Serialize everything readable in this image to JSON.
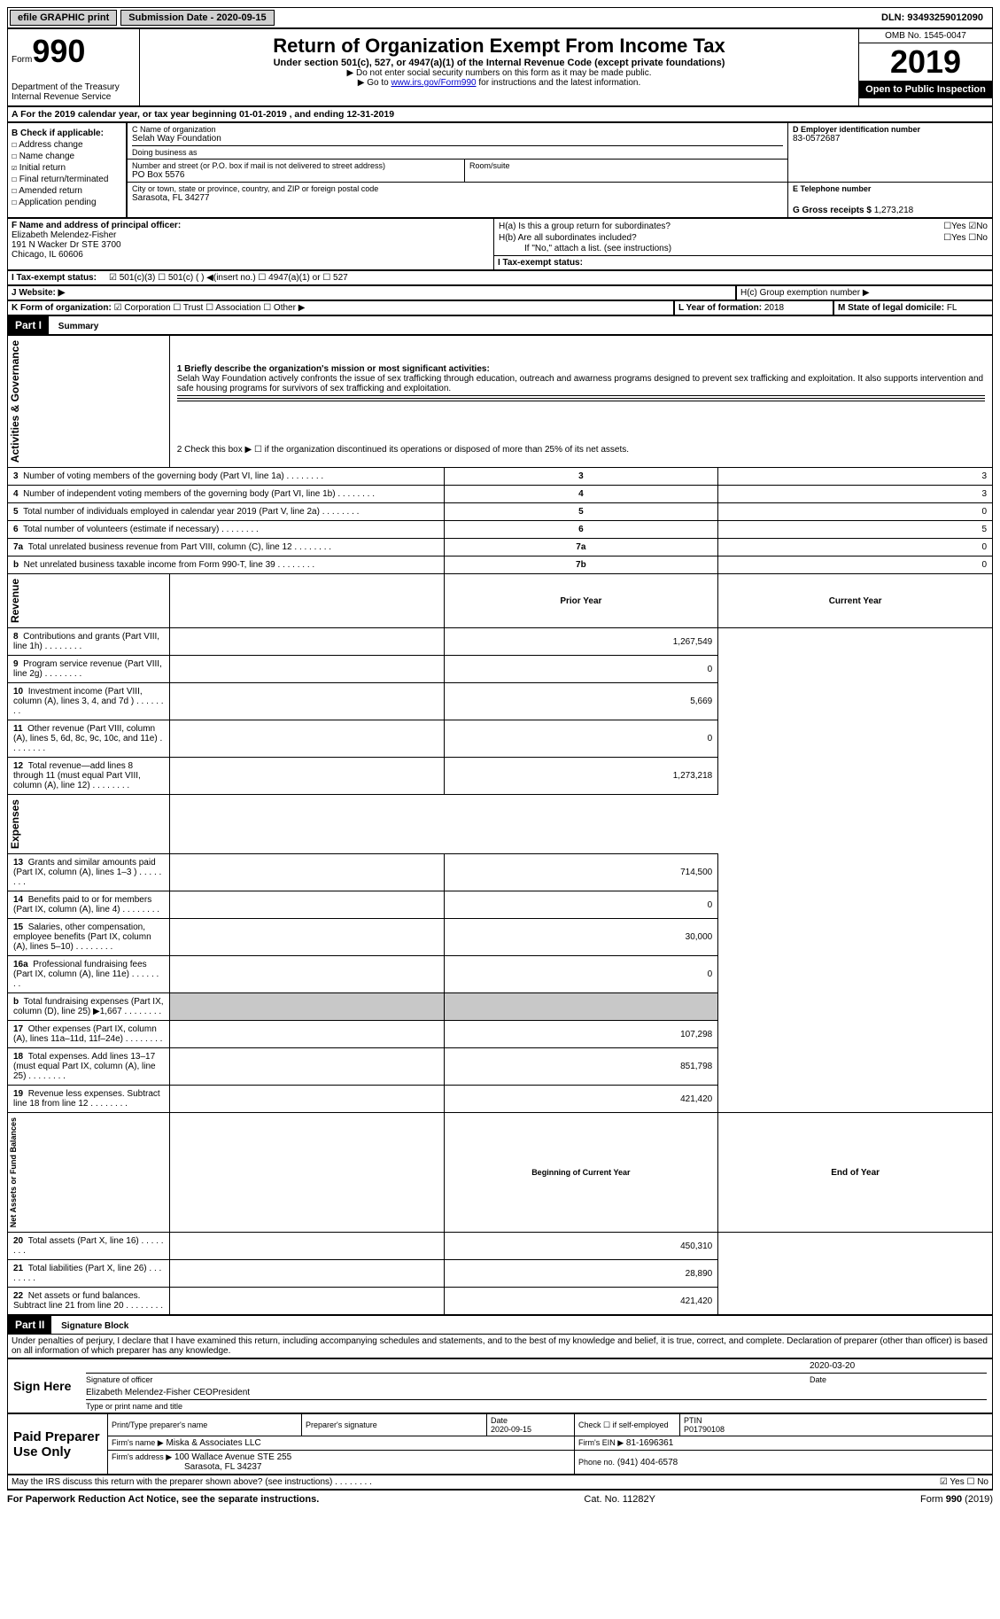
{
  "topbar": {
    "efile": "efile GRAPHIC print",
    "submission": "Submission Date - 2020-09-15",
    "dln": "DLN: 93493259012090"
  },
  "header": {
    "form_label": "Form",
    "form_number": "990",
    "dept": "Department of the Treasury\nInternal Revenue Service",
    "title": "Return of Organization Exempt From Income Tax",
    "subtitle": "Under section 501(c), 527, or 4947(a)(1) of the Internal Revenue Code (except private foundations)",
    "note1": "▶ Do not enter social security numbers on this form as it may be made public.",
    "note2_pre": "▶ Go to ",
    "note2_link": "www.irs.gov/Form990",
    "note2_post": " for instructions and the latest information.",
    "omb": "OMB No. 1545-0047",
    "year": "2019",
    "inspection": "Open to Public Inspection"
  },
  "period": "A For the 2019 calendar year, or tax year beginning 01-01-2019    , and ending 12-31-2019",
  "section_b": {
    "title": "B Check if applicable:",
    "items": [
      {
        "chk": "☐",
        "label": "Address change"
      },
      {
        "chk": "☐",
        "label": "Name change"
      },
      {
        "chk": "☑",
        "label": "Initial return"
      },
      {
        "chk": "☐",
        "label": "Final return/terminated"
      },
      {
        "chk": "☐",
        "label": "Amended return"
      },
      {
        "chk": "☐",
        "label": "Application pending"
      }
    ]
  },
  "section_c": {
    "name_label": "C Name of organization",
    "name": "Selah Way Foundation",
    "dba_label": "Doing business as",
    "addr_label": "Number and street (or P.O. box if mail is not delivered to street address)",
    "room_label": "Room/suite",
    "addr": "PO Box 5576",
    "city_label": "City or town, state or province, country, and ZIP or foreign postal code",
    "city": "Sarasota, FL  34277"
  },
  "section_d": {
    "label": "D Employer identification number",
    "value": "83-0572687"
  },
  "section_e": {
    "label": "E Telephone number"
  },
  "section_g": {
    "label": "G Gross receipts $",
    "value": "1,273,218"
  },
  "section_f": {
    "label": "F  Name and address of principal officer:",
    "name": "Elizabeth Melendez-Fisher",
    "addr1": "191 N Wacker Dr STE 3700",
    "addr2": "Chicago, IL  60606"
  },
  "section_h": {
    "ha": "H(a)  Is this a group return for subordinates?",
    "ha_ans": "☐Yes ☑No",
    "hb": "H(b)  Are all subordinates included?",
    "hb_ans": "☐Yes ☐No",
    "hb_note": "If \"No,\" attach a list. (see instructions)",
    "hc": "H(c)  Group exemption number ▶"
  },
  "section_i": {
    "label": "I   Tax-exempt status:",
    "opts": "☑ 501(c)(3)    ☐ 501(c) (  ) ◀(insert no.)    ☐ 4947(a)(1) or   ☐ 527"
  },
  "section_j": {
    "label": "J   Website: ▶"
  },
  "section_k": {
    "label": "K Form of organization:",
    "opts": "☑ Corporation  ☐ Trust  ☐ Association  ☐ Other ▶"
  },
  "section_l": {
    "label": "L Year of formation:",
    "value": "2018"
  },
  "section_m": {
    "label": "M State of legal domicile:",
    "value": "FL"
  },
  "part1": {
    "hdr": "Part I",
    "title": "Summary",
    "mission_label": "1  Briefly describe the organization's mission or most significant activities:",
    "mission": "Selah Way Foundation actively confronts the issue of sex trafficking through education, outreach and awarness programs designed to prevent sex trafficking and exploitation. It also supports intervention and safe housing programs for survivors of sex trafficking and exploitation.",
    "line2": "2   Check this box ▶ ☐  if the organization discontinued its operations or disposed of more than 25% of its net assets.",
    "vert_labels": {
      "ag": "Activities & Governance",
      "rev": "Revenue",
      "exp": "Expenses",
      "net": "Net Assets or Fund Balances"
    },
    "lines_ag": [
      {
        "no": "3",
        "text": "Number of voting members of the governing body (Part VI, line 1a)",
        "box": "3",
        "val": "3"
      },
      {
        "no": "4",
        "text": "Number of independent voting members of the governing body (Part VI, line 1b)",
        "box": "4",
        "val": "3"
      },
      {
        "no": "5",
        "text": "Total number of individuals employed in calendar year 2019 (Part V, line 2a)",
        "box": "5",
        "val": "0"
      },
      {
        "no": "6",
        "text": "Total number of volunteers (estimate if necessary)",
        "box": "6",
        "val": "5"
      },
      {
        "no": "7a",
        "text": "Total unrelated business revenue from Part VIII, column (C), line 12",
        "box": "7a",
        "val": "0"
      },
      {
        "no": "b",
        "text": "Net unrelated business taxable income from Form 990-T, line 39",
        "box": "7b",
        "val": "0"
      }
    ],
    "col_hdrs": {
      "prior": "Prior Year",
      "current": "Current Year"
    },
    "lines_rev": [
      {
        "no": "8",
        "text": "Contributions and grants (Part VIII, line 1h)",
        "prior": "",
        "current": "1,267,549"
      },
      {
        "no": "9",
        "text": "Program service revenue (Part VIII, line 2g)",
        "prior": "",
        "current": "0"
      },
      {
        "no": "10",
        "text": "Investment income (Part VIII, column (A), lines 3, 4, and 7d )",
        "prior": "",
        "current": "5,669"
      },
      {
        "no": "11",
        "text": "Other revenue (Part VIII, column (A), lines 5, 6d, 8c, 9c, 10c, and 11e)",
        "prior": "",
        "current": "0"
      },
      {
        "no": "12",
        "text": "Total revenue—add lines 8 through 11 (must equal Part VIII, column (A), line 12)",
        "prior": "",
        "current": "1,273,218"
      }
    ],
    "lines_exp": [
      {
        "no": "13",
        "text": "Grants and similar amounts paid (Part IX, column (A), lines 1–3 )",
        "prior": "",
        "current": "714,500"
      },
      {
        "no": "14",
        "text": "Benefits paid to or for members (Part IX, column (A), line 4)",
        "prior": "",
        "current": "0"
      },
      {
        "no": "15",
        "text": "Salaries, other compensation, employee benefits (Part IX, column (A), lines 5–10)",
        "prior": "",
        "current": "30,000"
      },
      {
        "no": "16a",
        "text": "Professional fundraising fees (Part IX, column (A), line 11e)",
        "prior": "",
        "current": "0"
      },
      {
        "no": "b",
        "text": "Total fundraising expenses (Part IX, column (D), line 25) ▶1,667",
        "prior": "shaded",
        "current": "shaded"
      },
      {
        "no": "17",
        "text": "Other expenses (Part IX, column (A), lines 11a–11d, 11f–24e)",
        "prior": "",
        "current": "107,298"
      },
      {
        "no": "18",
        "text": "Total expenses. Add lines 13–17 (must equal Part IX, column (A), line 25)",
        "prior": "",
        "current": "851,798"
      },
      {
        "no": "19",
        "text": "Revenue less expenses. Subtract line 18 from line 12",
        "prior": "",
        "current": "421,420"
      }
    ],
    "net_hdrs": {
      "begin": "Beginning of Current Year",
      "end": "End of Year"
    },
    "lines_net": [
      {
        "no": "20",
        "text": "Total assets (Part X, line 16)",
        "prior": "",
        "current": "450,310"
      },
      {
        "no": "21",
        "text": "Total liabilities (Part X, line 26)",
        "prior": "",
        "current": "28,890"
      },
      {
        "no": "22",
        "text": "Net assets or fund balances. Subtract line 21 from line 20",
        "prior": "",
        "current": "421,420"
      }
    ]
  },
  "part2": {
    "hdr": "Part II",
    "title": "Signature Block",
    "perjury": "Under penalties of perjury, I declare that I have examined this return, including accompanying schedules and statements, and to the best of my knowledge and belief, it is true, correct, and complete. Declaration of preparer (other than officer) is based on all information of which preparer has any knowledge.",
    "sign_here": "Sign Here",
    "sig_date": "2020-03-20",
    "sig_label": "Signature of officer",
    "date_label": "Date",
    "officer": "Elizabeth Melendez-Fisher  CEOPresident",
    "officer_label": "Type or print name and title",
    "paid": "Paid Preparer Use Only",
    "prep_name_label": "Print/Type preparer's name",
    "prep_sig_label": "Preparer's signature",
    "prep_date_label": "Date",
    "prep_date": "2020-09-15",
    "check_self": "Check ☐ if self-employed",
    "ptin_label": "PTIN",
    "ptin": "P01790108",
    "firm_name_label": "Firm's name    ▶",
    "firm_name": "Miska & Associates LLC",
    "firm_ein_label": "Firm's EIN ▶",
    "firm_ein": "81-1696361",
    "firm_addr_label": "Firm's address ▶",
    "firm_addr1": "100 Wallace Avenue STE 255",
    "firm_addr2": "Sarasota, FL  34237",
    "phone_label": "Phone no.",
    "phone": "(941) 404-6578",
    "irs_discuss": "May the IRS discuss this return with the preparer shown above? (see instructions)",
    "irs_ans": "☑ Yes  ☐ No"
  },
  "footer": {
    "paperwork": "For Paperwork Reduction Act Notice, see the separate instructions.",
    "cat": "Cat. No. 11282Y",
    "form": "Form 990 (2019)"
  }
}
